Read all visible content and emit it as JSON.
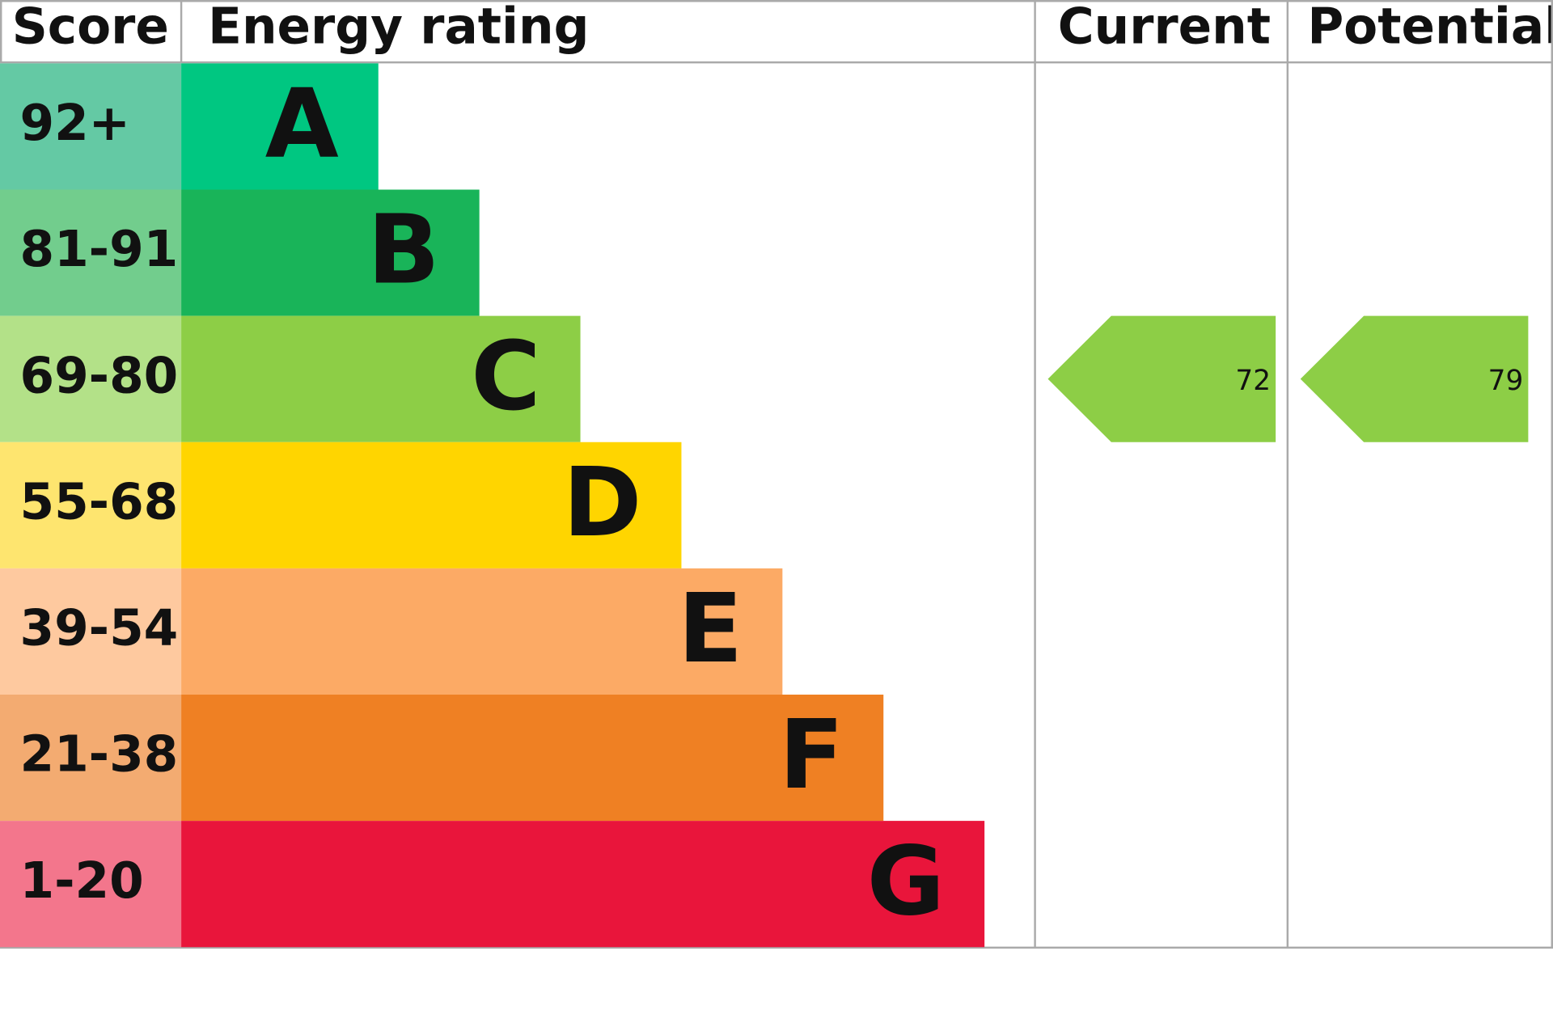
{
  "header": {
    "score": "Score",
    "energy_rating": "Energy rating",
    "current": "Current",
    "potential": "Potential"
  },
  "bands": [
    {
      "score": "92+",
      "letter": "A",
      "color": "#00c781",
      "score_color": "#64c9a4"
    },
    {
      "score": "81-91",
      "letter": "B",
      "color": "#19b459",
      "score_color": "#72cd8d"
    },
    {
      "score": "69-80",
      "letter": "C",
      "color": "#8dce46",
      "score_color": "#b3e188"
    },
    {
      "score": "55-68",
      "letter": "D",
      "color": "#ffd500",
      "score_color": "#fee56f"
    },
    {
      "score": "39-54",
      "letter": "E",
      "color": "#fcaa65",
      "score_color": "#fec99f"
    },
    {
      "score": "21-38",
      "letter": "F",
      "color": "#ef8023",
      "score_color": "#f3ab71"
    },
    {
      "score": "1-20",
      "letter": "G",
      "color": "#e9153b",
      "score_color": "#f3768c"
    }
  ],
  "current": {
    "value": "72",
    "color": "#8dce46"
  },
  "potential": {
    "value": "79",
    "color": "#8dce46"
  }
}
